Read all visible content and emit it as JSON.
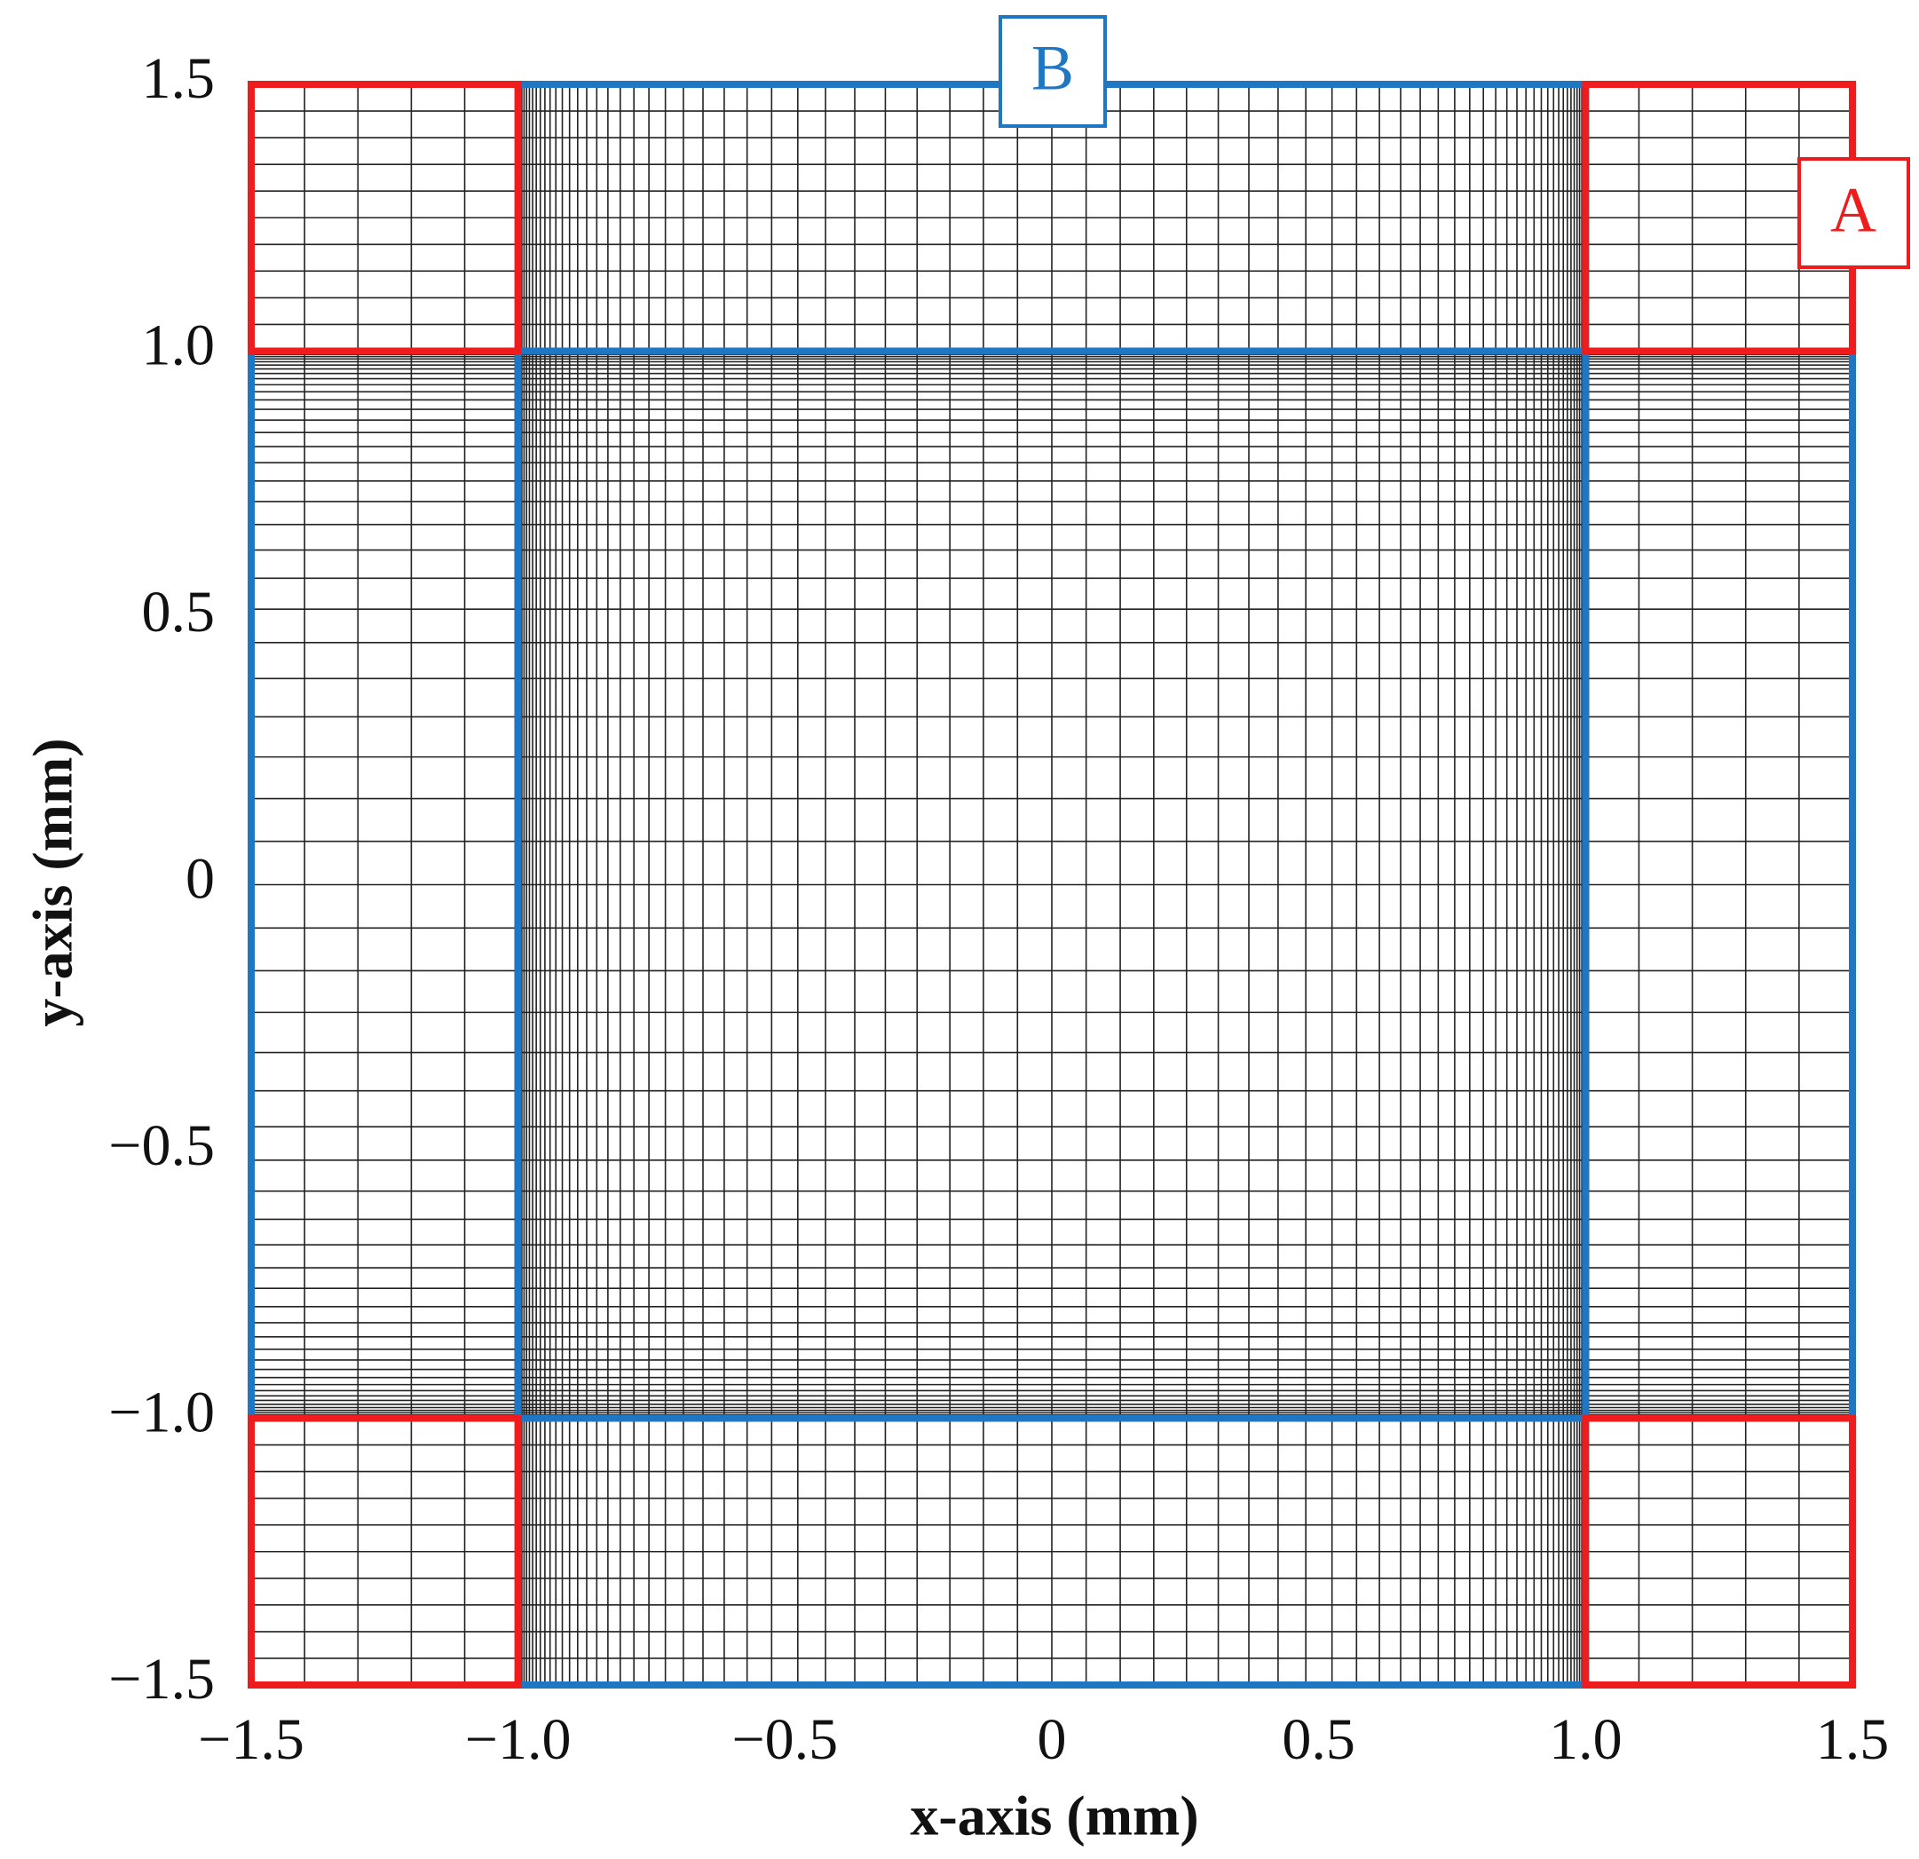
{
  "chart_data": {
    "type": "mesh",
    "xlabel": "x-axis (mm)",
    "ylabel": "y-axis (mm)",
    "annotations": [
      "A",
      "B"
    ],
    "xlim": [
      -1.5,
      1.5
    ],
    "ylim": [
      -1.5,
      1.5
    ],
    "xticks": [
      {
        "value": -1.5,
        "label": "−1.5"
      },
      {
        "value": -1.0,
        "label": "−1.0"
      },
      {
        "value": -0.5,
        "label": "−0.5"
      },
      0,
      0.5,
      {
        "value": 1.0,
        "label": "1.0"
      },
      1.5
    ],
    "yticks": [
      {
        "value": -1.5,
        "label": "−1.5"
      },
      {
        "value": -1.0,
        "label": "−1.0"
      },
      {
        "value": -0.5,
        "label": "−0.5"
      },
      0,
      0.5,
      {
        "value": 1.0,
        "label": "1.0"
      },
      1.5
    ]
  }
}
